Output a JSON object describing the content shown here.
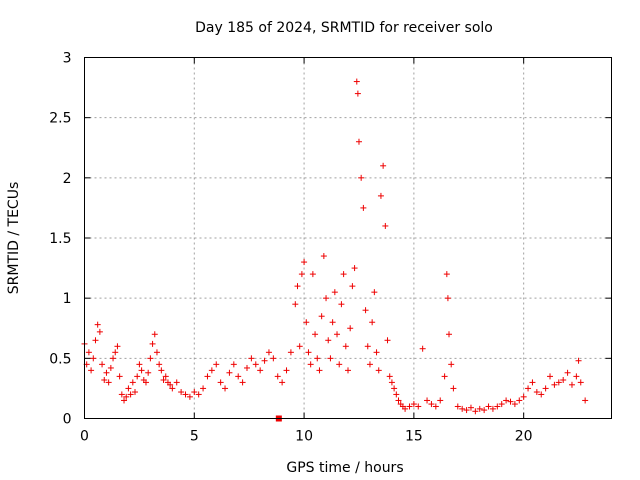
{
  "chart_data": {
    "type": "scatter",
    "title": "Day 185 of 2024, SRMTID for receiver solo",
    "xlabel": "GPS time / hours",
    "ylabel": "SRMTID / TECUs",
    "xlim": [
      0,
      24
    ],
    "ylim": [
      0,
      3
    ],
    "xticks": [
      0,
      5,
      10,
      15,
      20
    ],
    "xtick_labels": [
      "0",
      "5",
      "10",
      "15",
      "20"
    ],
    "yticks": [
      0,
      0.5,
      1,
      1.5,
      2,
      2.5,
      3
    ],
    "ytick_labels": [
      "0",
      "0.5",
      "1",
      "1.5",
      "2",
      "2.5",
      "3"
    ],
    "grid": true,
    "marker": "+",
    "color": "#ee0000",
    "series": [
      {
        "name": "SRMTID",
        "points": [
          [
            0.0,
            0.62
          ],
          [
            0.1,
            0.45
          ],
          [
            0.2,
            0.55
          ],
          [
            0.3,
            0.4
          ],
          [
            0.4,
            0.5
          ],
          [
            0.5,
            0.65
          ],
          [
            0.6,
            0.78
          ],
          [
            0.7,
            0.72
          ],
          [
            0.8,
            0.45
          ],
          [
            0.9,
            0.32
          ],
          [
            1.0,
            0.38
          ],
          [
            1.1,
            0.3
          ],
          [
            1.2,
            0.42
          ],
          [
            1.3,
            0.5
          ],
          [
            1.4,
            0.55
          ],
          [
            1.5,
            0.6
          ],
          [
            1.6,
            0.35
          ],
          [
            1.7,
            0.2
          ],
          [
            1.8,
            0.15
          ],
          [
            1.9,
            0.18
          ],
          [
            2.0,
            0.25
          ],
          [
            2.1,
            0.2
          ],
          [
            2.2,
            0.3
          ],
          [
            2.3,
            0.22
          ],
          [
            2.4,
            0.35
          ],
          [
            2.5,
            0.45
          ],
          [
            2.6,
            0.4
          ],
          [
            2.7,
            0.32
          ],
          [
            2.8,
            0.3
          ],
          [
            2.9,
            0.38
          ],
          [
            3.0,
            0.5
          ],
          [
            3.1,
            0.62
          ],
          [
            3.2,
            0.7
          ],
          [
            3.3,
            0.55
          ],
          [
            3.4,
            0.45
          ],
          [
            3.5,
            0.4
          ],
          [
            3.6,
            0.32
          ],
          [
            3.7,
            0.35
          ],
          [
            3.8,
            0.3
          ],
          [
            3.9,
            0.28
          ],
          [
            4.0,
            0.25
          ],
          [
            4.2,
            0.3
          ],
          [
            4.4,
            0.22
          ],
          [
            4.6,
            0.2
          ],
          [
            4.8,
            0.18
          ],
          [
            5.0,
            0.22
          ],
          [
            5.2,
            0.2
          ],
          [
            5.4,
            0.25
          ],
          [
            5.6,
            0.35
          ],
          [
            5.8,
            0.4
          ],
          [
            6.0,
            0.45
          ],
          [
            6.2,
            0.3
          ],
          [
            6.4,
            0.25
          ],
          [
            6.6,
            0.38
          ],
          [
            6.8,
            0.45
          ],
          [
            7.0,
            0.35
          ],
          [
            7.2,
            0.3
          ],
          [
            7.4,
            0.42
          ],
          [
            7.6,
            0.5
          ],
          [
            7.8,
            0.45
          ],
          [
            8.0,
            0.4
          ],
          [
            8.2,
            0.48
          ],
          [
            8.4,
            0.55
          ],
          [
            8.6,
            0.5
          ],
          [
            8.8,
            0.35
          ],
          [
            9.0,
            0.3
          ],
          [
            9.2,
            0.4
          ],
          [
            9.4,
            0.55
          ],
          [
            9.6,
            0.95
          ],
          [
            9.7,
            1.1
          ],
          [
            9.8,
            0.6
          ],
          [
            9.9,
            1.2
          ],
          [
            10.0,
            1.3
          ],
          [
            10.1,
            0.8
          ],
          [
            10.2,
            0.55
          ],
          [
            10.3,
            0.45
          ],
          [
            10.4,
            1.2
          ],
          [
            10.5,
            0.7
          ],
          [
            10.6,
            0.5
          ],
          [
            10.7,
            0.4
          ],
          [
            10.8,
            0.85
          ],
          [
            10.9,
            1.35
          ],
          [
            11.0,
            1.0
          ],
          [
            11.1,
            0.65
          ],
          [
            11.2,
            0.5
          ],
          [
            11.3,
            0.8
          ],
          [
            11.4,
            1.05
          ],
          [
            11.5,
            0.7
          ],
          [
            11.6,
            0.45
          ],
          [
            11.7,
            0.95
          ],
          [
            11.8,
            1.2
          ],
          [
            11.9,
            0.6
          ],
          [
            12.0,
            0.4
          ],
          [
            12.1,
            0.75
          ],
          [
            12.2,
            1.1
          ],
          [
            12.3,
            1.25
          ],
          [
            12.4,
            2.8
          ],
          [
            12.45,
            2.7
          ],
          [
            12.5,
            2.3
          ],
          [
            12.6,
            2.0
          ],
          [
            12.7,
            1.75
          ],
          [
            12.8,
            0.9
          ],
          [
            12.9,
            0.6
          ],
          [
            13.0,
            0.45
          ],
          [
            13.1,
            0.8
          ],
          [
            13.2,
            1.05
          ],
          [
            13.3,
            0.55
          ],
          [
            13.4,
            0.4
          ],
          [
            13.5,
            1.85
          ],
          [
            13.6,
            2.1
          ],
          [
            13.7,
            1.6
          ],
          [
            13.8,
            0.65
          ],
          [
            13.9,
            0.35
          ],
          [
            14.0,
            0.3
          ],
          [
            14.1,
            0.25
          ],
          [
            14.2,
            0.2
          ],
          [
            14.3,
            0.15
          ],
          [
            14.4,
            0.12
          ],
          [
            14.5,
            0.1
          ],
          [
            14.6,
            0.08
          ],
          [
            14.8,
            0.1
          ],
          [
            15.0,
            0.12
          ],
          [
            15.2,
            0.1
          ],
          [
            15.4,
            0.58
          ],
          [
            15.6,
            0.15
          ],
          [
            15.8,
            0.12
          ],
          [
            16.0,
            0.1
          ],
          [
            16.2,
            0.15
          ],
          [
            16.4,
            0.35
          ],
          [
            16.5,
            1.2
          ],
          [
            16.55,
            1.0
          ],
          [
            16.6,
            0.7
          ],
          [
            16.7,
            0.45
          ],
          [
            16.8,
            0.25
          ],
          [
            17.0,
            0.1
          ],
          [
            17.2,
            0.08
          ],
          [
            17.4,
            0.07
          ],
          [
            17.6,
            0.09
          ],
          [
            17.8,
            0.06
          ],
          [
            18.0,
            0.08
          ],
          [
            18.2,
            0.07
          ],
          [
            18.4,
            0.1
          ],
          [
            18.6,
            0.08
          ],
          [
            18.8,
            0.1
          ],
          [
            19.0,
            0.12
          ],
          [
            19.2,
            0.15
          ],
          [
            19.4,
            0.14
          ],
          [
            19.6,
            0.12
          ],
          [
            19.8,
            0.15
          ],
          [
            20.0,
            0.18
          ],
          [
            20.2,
            0.25
          ],
          [
            20.4,
            0.3
          ],
          [
            20.6,
            0.22
          ],
          [
            20.8,
            0.2
          ],
          [
            21.0,
            0.25
          ],
          [
            21.2,
            0.35
          ],
          [
            21.4,
            0.28
          ],
          [
            21.6,
            0.3
          ],
          [
            21.8,
            0.32
          ],
          [
            22.0,
            0.38
          ],
          [
            22.2,
            0.28
          ],
          [
            22.4,
            0.35
          ],
          [
            22.5,
            0.48
          ],
          [
            22.6,
            0.3
          ],
          [
            22.8,
            0.15
          ]
        ]
      }
    ],
    "single_square_marker": [
      8.85,
      0.0
    ]
  }
}
